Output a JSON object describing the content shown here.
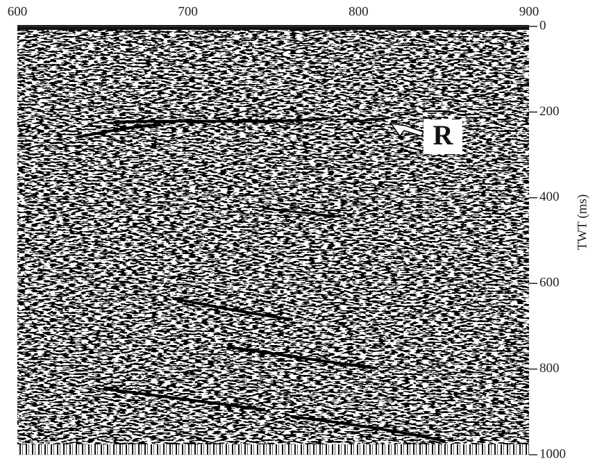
{
  "chart_data": {
    "type": "seismic",
    "xlim": [
      600,
      900
    ],
    "xticks": [
      600,
      700,
      800,
      900
    ],
    "ylim": [
      0,
      1000
    ],
    "yticks": [
      0,
      200,
      400,
      600,
      800,
      1000
    ],
    "y_inverted": true,
    "y_label": "TWT (ms)",
    "annotation": "R",
    "grid": true
  }
}
